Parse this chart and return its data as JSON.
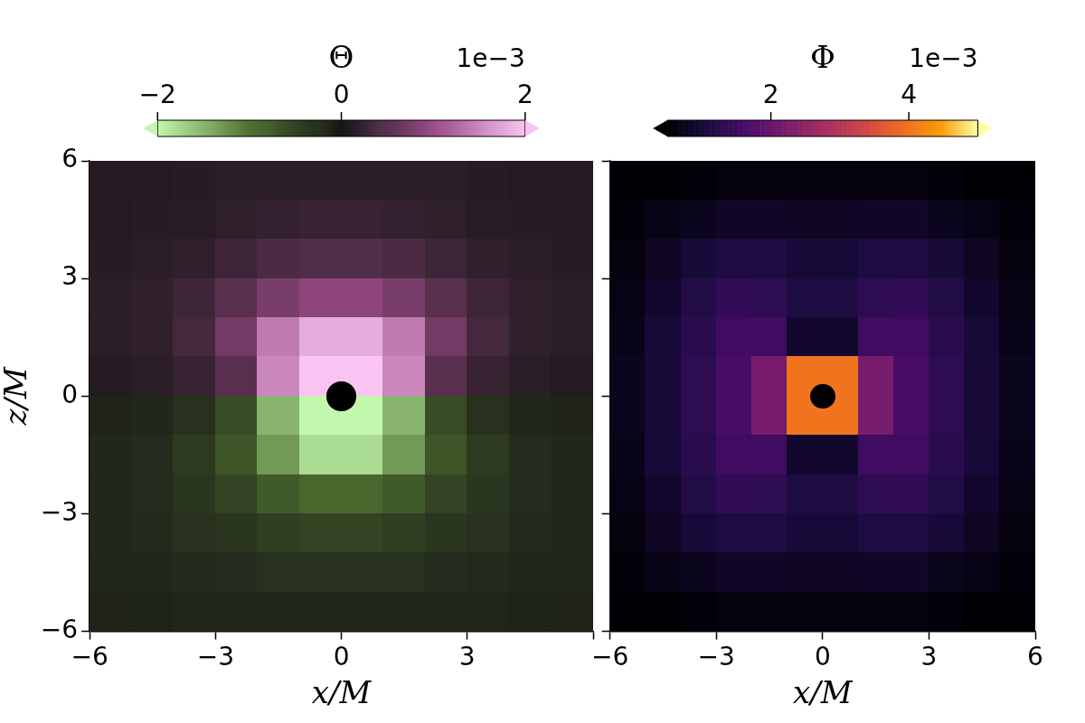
{
  "chart_data": [
    {
      "type": "heatmap",
      "clabel": "Θ",
      "annotations": [
        "1e−3"
      ],
      "xlabel": "x/M",
      "ylabel": "z/M",
      "x": [
        -5.5,
        -4.5,
        -3.5,
        -2.5,
        -1.5,
        -0.5,
        0.5,
        1.5,
        2.5,
        3.5,
        4.5,
        5.5
      ],
      "y": [
        5.5,
        4.5,
        3.5,
        2.5,
        1.5,
        0.5,
        -0.5,
        -1.5,
        -2.5,
        -3.5,
        -4.5,
        -5.5
      ],
      "cells": [
        [
          0.1,
          0.1,
          0.12,
          0.15,
          0.15,
          0.15,
          0.15,
          0.15,
          0.15,
          0.12,
          0.1,
          0.1
        ],
        [
          0.1,
          0.12,
          0.14,
          0.18,
          0.22,
          0.25,
          0.25,
          0.22,
          0.18,
          0.14,
          0.12,
          0.1
        ],
        [
          0.12,
          0.15,
          0.2,
          0.3,
          0.4,
          0.45,
          0.45,
          0.4,
          0.3,
          0.2,
          0.15,
          0.12
        ],
        [
          0.15,
          0.2,
          0.3,
          0.5,
          0.75,
          0.9,
          0.9,
          0.75,
          0.5,
          0.3,
          0.2,
          0.15
        ],
        [
          0.15,
          0.2,
          0.35,
          0.7,
          1.4,
          1.8,
          1.8,
          1.4,
          0.7,
          0.35,
          0.2,
          0.15
        ],
        [
          0.1,
          0.15,
          0.25,
          0.5,
          1.5,
          2,
          2,
          1.5,
          0.5,
          0.25,
          0.15,
          0.1
        ],
        [
          -0.15,
          -0.2,
          -0.3,
          -0.6,
          -1.5,
          -2,
          -2,
          -1.5,
          -0.6,
          -0.3,
          -0.2,
          -0.15
        ],
        [
          -0.2,
          -0.25,
          -0.4,
          -0.7,
          -1.3,
          -1.8,
          -1.8,
          -1.3,
          -0.7,
          -0.4,
          -0.25,
          -0.2
        ],
        [
          -0.2,
          -0.25,
          -0.35,
          -0.5,
          -0.75,
          -0.9,
          -0.9,
          -0.75,
          -0.5,
          -0.35,
          -0.25,
          -0.2
        ],
        [
          -0.2,
          -0.22,
          -0.3,
          -0.35,
          -0.45,
          -0.5,
          -0.5,
          -0.45,
          -0.35,
          -0.3,
          -0.22,
          -0.2
        ],
        [
          -0.18,
          -0.2,
          -0.22,
          -0.25,
          -0.3,
          -0.3,
          -0.3,
          -0.3,
          -0.25,
          -0.22,
          -0.2,
          -0.18
        ],
        [
          -0.15,
          -0.16,
          -0.18,
          -0.2,
          -0.2,
          -0.2,
          -0.2,
          -0.2,
          -0.2,
          -0.18,
          -0.16,
          -0.15
        ]
      ],
      "clim": [
        -2,
        2
      ],
      "cticks": [
        -2,
        0,
        2
      ],
      "xlim": [
        -6,
        6
      ],
      "ylim": [
        -6,
        6
      ],
      "xticks": [
        -6,
        -3,
        0,
        3,
        {
          "value": 6,
          "label": null
        }
      ],
      "yticks": [
        -6,
        -3,
        0,
        3,
        6
      ]
    },
    {
      "type": "heatmap",
      "clabel": "Φ",
      "annotations": [
        "1e−3"
      ],
      "xlabel": "x/M",
      "tick_labels": "x",
      "x": [
        -5.5,
        -4.5,
        -3.5,
        -2.5,
        -1.5,
        -0.5,
        0.5,
        1.5,
        2.5,
        3.5,
        4.5,
        5.5
      ],
      "y": [
        5.5,
        4.5,
        3.5,
        2.5,
        1.5,
        0.5,
        -0.5,
        -1.5,
        -2.5,
        -3.5,
        -4.5,
        -5.5
      ],
      "cells": [
        [
          0.5,
          0.5,
          0.55,
          0.6,
          0.6,
          0.6,
          0.6,
          0.6,
          0.6,
          0.55,
          0.5,
          0.5
        ],
        [
          0.55,
          0.65,
          0.75,
          0.85,
          0.85,
          0.8,
          0.8,
          0.85,
          0.85,
          0.75,
          0.65,
          0.55
        ],
        [
          0.6,
          0.8,
          1.0,
          1.1,
          1.1,
          1.0,
          1.0,
          1.1,
          1.1,
          1.0,
          0.8,
          0.6
        ],
        [
          0.65,
          0.9,
          1.15,
          1.35,
          1.3,
          1.1,
          1.1,
          1.3,
          1.35,
          1.15,
          0.9,
          0.65
        ],
        [
          0.7,
          1.0,
          1.25,
          1.5,
          1.5,
          0.9,
          0.9,
          1.5,
          1.5,
          1.25,
          1.0,
          0.7
        ],
        [
          0.75,
          1.0,
          1.3,
          1.6,
          2.2,
          4,
          4,
          2.2,
          1.6,
          1.3,
          1.0,
          0.75
        ],
        [
          0.75,
          1.0,
          1.3,
          1.6,
          2.2,
          4,
          4,
          2.2,
          1.6,
          1.3,
          1.0,
          0.75
        ],
        [
          0.7,
          1.0,
          1.25,
          1.5,
          1.5,
          0.9,
          0.9,
          1.5,
          1.5,
          1.25,
          1.0,
          0.7
        ],
        [
          0.65,
          0.9,
          1.15,
          1.35,
          1.3,
          1.1,
          1.1,
          1.3,
          1.35,
          1.15,
          0.9,
          0.65
        ],
        [
          0.6,
          0.8,
          1.0,
          1.1,
          1.1,
          1.0,
          1.0,
          1.1,
          1.1,
          1.0,
          0.8,
          0.6
        ],
        [
          0.55,
          0.65,
          0.75,
          0.85,
          0.85,
          0.8,
          0.8,
          0.85,
          0.85,
          0.75,
          0.65,
          0.55
        ],
        [
          0.5,
          0.5,
          0.55,
          0.6,
          0.6,
          0.6,
          0.6,
          0.6,
          0.6,
          0.55,
          0.5,
          0.5
        ]
      ],
      "clim": [
        0.5,
        5
      ],
      "cticks": [
        2,
        4
      ],
      "xlim": [
        -6,
        6
      ],
      "ylim": [
        -6,
        6
      ],
      "xticks": [
        -6,
        -3,
        0,
        3,
        6
      ],
      "yticks": [
        -6,
        -3,
        0,
        3,
        6
      ]
    }
  ]
}
